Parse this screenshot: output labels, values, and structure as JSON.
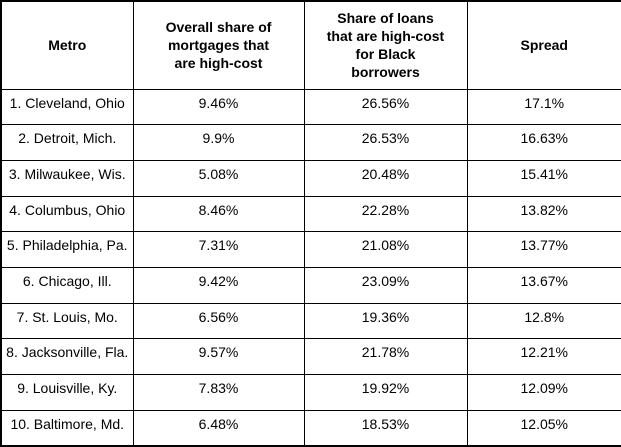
{
  "chart_data": {
    "type": "table",
    "columns": [
      "Metro",
      "Overall share of mortgages that are high-cost",
      "Share of loans that are high-cost for Black borrowers",
      "Spread"
    ],
    "rows": [
      [
        "1. Cleveland, Ohio",
        "9.46%",
        "26.56%",
        "17.1%"
      ],
      [
        "2. Detroit, Mich.",
        "9.9%",
        "26.53%",
        "16.63%"
      ],
      [
        "3. Milwaukee, Wis.",
        "5.08%",
        "20.48%",
        "15.41%"
      ],
      [
        "4. Columbus, Ohio",
        "8.46%",
        "22.28%",
        "13.82%"
      ],
      [
        "5. Philadelphia, Pa.",
        "7.31%",
        "21.08%",
        "13.77%"
      ],
      [
        "6. Chicago, Ill.",
        "9.42%",
        "23.09%",
        "13.67%"
      ],
      [
        "7. St. Louis, Mo.",
        "6.56%",
        "19.36%",
        "12.8%"
      ],
      [
        "8. Jacksonville, Fla.",
        "9.57%",
        "21.78%",
        "12.21%"
      ],
      [
        "9. Louisville, Ky.",
        "7.83%",
        "19.92%",
        "12.09%"
      ],
      [
        "10. Baltimore, Md.",
        "6.48%",
        "18.53%",
        "12.05%"
      ]
    ],
    "title": "",
    "legend": null,
    "grid": "full black gridlines"
  },
  "header_display": {
    "col1": "Metro",
    "col2": "Overall share of\nmortgages that\nare high-cost",
    "col3": "Share of loans\nthat are high-cost\nfor Black\nborrowers",
    "col4": "Spread"
  },
  "style_tokens": {
    "border_color": "#000000",
    "text_color": "#000000",
    "background_color": "#ffffff"
  }
}
